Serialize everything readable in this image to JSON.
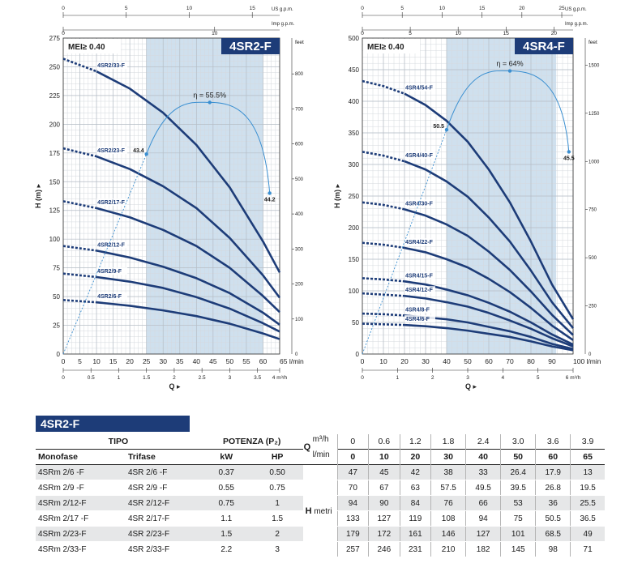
{
  "chart_data": [
    {
      "type": "line",
      "title": "4SR2-F",
      "mei": "MEI≥ 0.40",
      "ylabel": "H (m)",
      "xlabel": "Q",
      "y_feet_label": "feet",
      "ylim": [
        0,
        275
      ],
      "xlim": [
        0,
        65
      ],
      "x_unit": "l/min",
      "x_ticks": [
        0,
        5,
        10,
        15,
        20,
        25,
        30,
        35,
        40,
        45,
        50,
        55,
        60,
        65
      ],
      "y_ticks": [
        0,
        25,
        50,
        75,
        100,
        125,
        150,
        175,
        200,
        225,
        250,
        275
      ],
      "m3h_ticks": [
        {
          "v": 0,
          "label": "0"
        },
        {
          "v": 0.5,
          "label": "0.5"
        },
        {
          "v": 1,
          "label": "1"
        },
        {
          "v": 1.5,
          "label": "1.5"
        },
        {
          "v": 2,
          "label": "2"
        },
        {
          "v": 2.5,
          "label": "2.5"
        },
        {
          "v": 3,
          "label": "3"
        },
        {
          "v": 3.5,
          "label": "3.5"
        },
        {
          "v": 3.9,
          "label": "4 m³/h"
        }
      ],
      "us_gpm_label": "US g.p.m.",
      "imp_gpm_label": "Imp g.p.m.",
      "us_gpm_ticks": [
        0,
        5,
        10,
        15
      ],
      "imp_gpm_ticks": [
        0,
        10
      ],
      "feet_ticks": [
        100,
        200,
        300,
        400,
        500,
        600,
        700,
        800
      ],
      "efficient_range": [
        25,
        60
      ],
      "q_points": [
        0,
        10,
        20,
        30,
        40,
        50,
        60,
        65
      ],
      "curve_start": 10,
      "series": [
        {
          "name": "4SR2/33-F",
          "values": [
            257,
            246,
            231,
            210,
            182,
            145,
            98,
            71
          ]
        },
        {
          "name": "4SR2/23-F",
          "values": [
            179,
            172,
            161,
            146,
            127,
            101,
            68.5,
            49
          ]
        },
        {
          "name": "4SR2/17-F",
          "values": [
            133,
            127,
            119,
            108,
            94,
            75,
            50.5,
            36.5
          ]
        },
        {
          "name": "4SR2/12-F",
          "values": [
            94,
            90,
            84,
            76,
            66,
            53,
            36,
            25.5
          ]
        },
        {
          "name": "4SR2/9-F",
          "values": [
            70,
            67,
            63,
            57.5,
            49.5,
            39.5,
            26.8,
            19.5
          ]
        },
        {
          "name": "4SR2/6-F",
          "values": [
            47,
            45,
            42,
            38,
            33,
            26.4,
            17.9,
            13
          ]
        }
      ],
      "efficiency": {
        "label": "η = 55.5%",
        "points": [
          {
            "q": 25,
            "h": 174,
            "label": "43.4"
          },
          {
            "q": 44,
            "h": 219,
            "label": ""
          },
          {
            "q": 62,
            "h": 140,
            "label": "44.2"
          }
        ],
        "peak": {
          "q": 44,
          "h": 219
        }
      }
    },
    {
      "type": "line",
      "title": "4SR4-F",
      "mei": "MEI≥ 0.40",
      "ylabel": "H (m)",
      "xlabel": "Q",
      "y_feet_label": "feet",
      "ylim": [
        0,
        500
      ],
      "xlim": [
        0,
        100
      ],
      "x_unit": "l/min",
      "x_ticks": [
        0,
        10,
        20,
        30,
        40,
        50,
        60,
        70,
        80,
        90,
        100
      ],
      "y_ticks": [
        0,
        50,
        100,
        150,
        200,
        250,
        300,
        350,
        400,
        450,
        500
      ],
      "m3h_ticks": [
        {
          "v": 0,
          "label": "0"
        },
        {
          "v": 1,
          "label": "1"
        },
        {
          "v": 2,
          "label": "2"
        },
        {
          "v": 3,
          "label": "3"
        },
        {
          "v": 4,
          "label": "4"
        },
        {
          "v": 5,
          "label": "5"
        },
        {
          "v": 6,
          "label": "6 m³/h"
        }
      ],
      "us_gpm_label": "US g.p.m.",
      "imp_gpm_label": "Imp g.p.m.",
      "us_gpm_ticks": [
        0,
        5,
        10,
        15,
        20,
        25
      ],
      "imp_gpm_ticks": [
        0,
        5,
        10,
        15,
        20
      ],
      "feet_ticks": [
        250,
        500,
        750,
        1000,
        1250,
        1500
      ],
      "efficient_range": [
        40,
        92
      ],
      "q_points": [
        0,
        10,
        20,
        30,
        40,
        50,
        60,
        70,
        80,
        90,
        100
      ],
      "curve_start": 20,
      "series": [
        {
          "name": "4SR4/54-F",
          "values": [
            432,
            424,
            412,
            394,
            369,
            336,
            292,
            240,
            178,
            110,
            55
          ]
        },
        {
          "name": "4SR4/40-F",
          "values": [
            320,
            314,
            305,
            292,
            273,
            249,
            216,
            178,
            132,
            82,
            41
          ]
        },
        {
          "name": "4SR4/30-F",
          "values": [
            240,
            236,
            229,
            219,
            205,
            187,
            162,
            133,
            99,
            62,
            30
          ]
        },
        {
          "name": "4SR4/22-F",
          "values": [
            176,
            173,
            168,
            161,
            150,
            137,
            119,
            98,
            73,
            45,
            22
          ]
        },
        {
          "name": "4SR4/15-F",
          "values": [
            120,
            118,
            115,
            110,
            102,
            93,
            81,
            67,
            50,
            31,
            15
          ]
        },
        {
          "name": "4SR4/12-F",
          "values": [
            96,
            94,
            92,
            88,
            82,
            75,
            65,
            53,
            40,
            25,
            12
          ]
        },
        {
          "name": "4SR4/8-F",
          "values": [
            64,
            63,
            61,
            58,
            55,
            50,
            43,
            36,
            27,
            16,
            8
          ]
        },
        {
          "name": "4SR4/6-F",
          "values": [
            48,
            47,
            46,
            44,
            41,
            37,
            32,
            27,
            20,
            12,
            6
          ]
        }
      ],
      "efficiency": {
        "label": "η = 64%",
        "points": [
          {
            "q": 40,
            "h": 355,
            "label": "50.5"
          },
          {
            "q": 70,
            "h": 448,
            "label": ""
          },
          {
            "q": 98,
            "h": 320,
            "label": "45.5"
          }
        ],
        "peak": {
          "q": 70,
          "h": 448
        }
      }
    }
  ],
  "table": {
    "title": "4SR2-F",
    "header": {
      "tipo": "TIPO",
      "potenza": "POTENZA (P₂)",
      "monofase": "Monofase",
      "trifase": "Trifase",
      "kw": "kW",
      "hp": "HP",
      "q_label": "Q",
      "m3h_unit": "m³/h",
      "lmin_unit": "l/min",
      "h_label": "H",
      "h_unit": "metri"
    },
    "q_m3h": [
      "0",
      "0.6",
      "1.2",
      "1.8",
      "2.4",
      "3.0",
      "3.6",
      "3.9"
    ],
    "q_lmin": [
      "0",
      "10",
      "20",
      "30",
      "40",
      "50",
      "60",
      "65"
    ],
    "rows": [
      {
        "mono": "4SRm 2/6  -F",
        "tri": "4SR 2/6  -F",
        "kw": "0.37",
        "hp": "0.50",
        "h": [
          "47",
          "45",
          "42",
          "38",
          "33",
          "26.4",
          "17.9",
          "13"
        ]
      },
      {
        "mono": "4SRm 2/9  -F",
        "tri": "4SR 2/9  -F",
        "kw": "0.55",
        "hp": "0.75",
        "h": [
          "70",
          "67",
          "63",
          "57.5",
          "49.5",
          "39.5",
          "26.8",
          "19.5"
        ]
      },
      {
        "mono": "4SRm 2/12-F",
        "tri": "4SR 2/12-F",
        "kw": "0.75",
        "hp": "1",
        "h": [
          "94",
          "90",
          "84",
          "76",
          "66",
          "53",
          "36",
          "25.5"
        ]
      },
      {
        "mono": "4SRm 2/17 -F",
        "tri": "4SR 2/17-F",
        "kw": "1.1",
        "hp": "1.5",
        "h": [
          "133",
          "127",
          "119",
          "108",
          "94",
          "75",
          "50.5",
          "36.5"
        ]
      },
      {
        "mono": "4SRm 2/23-F",
        "tri": "4SR 2/23-F",
        "kw": "1.5",
        "hp": "2",
        "h": [
          "179",
          "172",
          "161",
          "146",
          "127",
          "101",
          "68.5",
          "49"
        ]
      },
      {
        "mono": "4SRm 2/33-F",
        "tri": "4SR 2/33-F",
        "kw": "2.2",
        "hp": "3",
        "h": [
          "257",
          "246",
          "231",
          "210",
          "182",
          "145",
          "98",
          "71"
        ]
      }
    ]
  }
}
